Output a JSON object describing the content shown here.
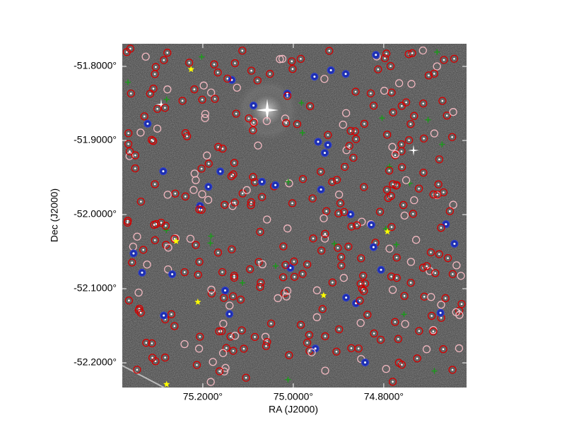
{
  "chart_data": {
    "type": "scatter",
    "xlabel": "RA (J2000)",
    "ylabel": "Dec (J2000)",
    "xlim": [
      75.378,
      74.617
    ],
    "ylim": [
      -52.2333,
      -51.7695
    ],
    "xticks": [
      {
        "value": 75.2,
        "label": "75.2000°"
      },
      {
        "value": 75.0,
        "label": "75.0000°"
      },
      {
        "value": 74.8,
        "label": "74.8000°"
      }
    ],
    "yticks": [
      {
        "value": -51.8,
        "label": "-51.8000°"
      },
      {
        "value": -51.9,
        "label": "-51.9000°"
      },
      {
        "value": -52.0,
        "label": "-52.0000°"
      },
      {
        "value": -52.1,
        "label": "-52.1000°"
      },
      {
        "value": -52.2,
        "label": "-52.2000°"
      }
    ],
    "series": [
      {
        "color": "#ffff00",
        "x": [
          75.226,
          75.259,
          75.211,
          74.933,
          74.792,
          75.28
        ],
        "y": [
          -51.804,
          -52.036,
          -52.118,
          -52.109,
          -52.023,
          -52.229
        ]
      }
    ]
  }
}
